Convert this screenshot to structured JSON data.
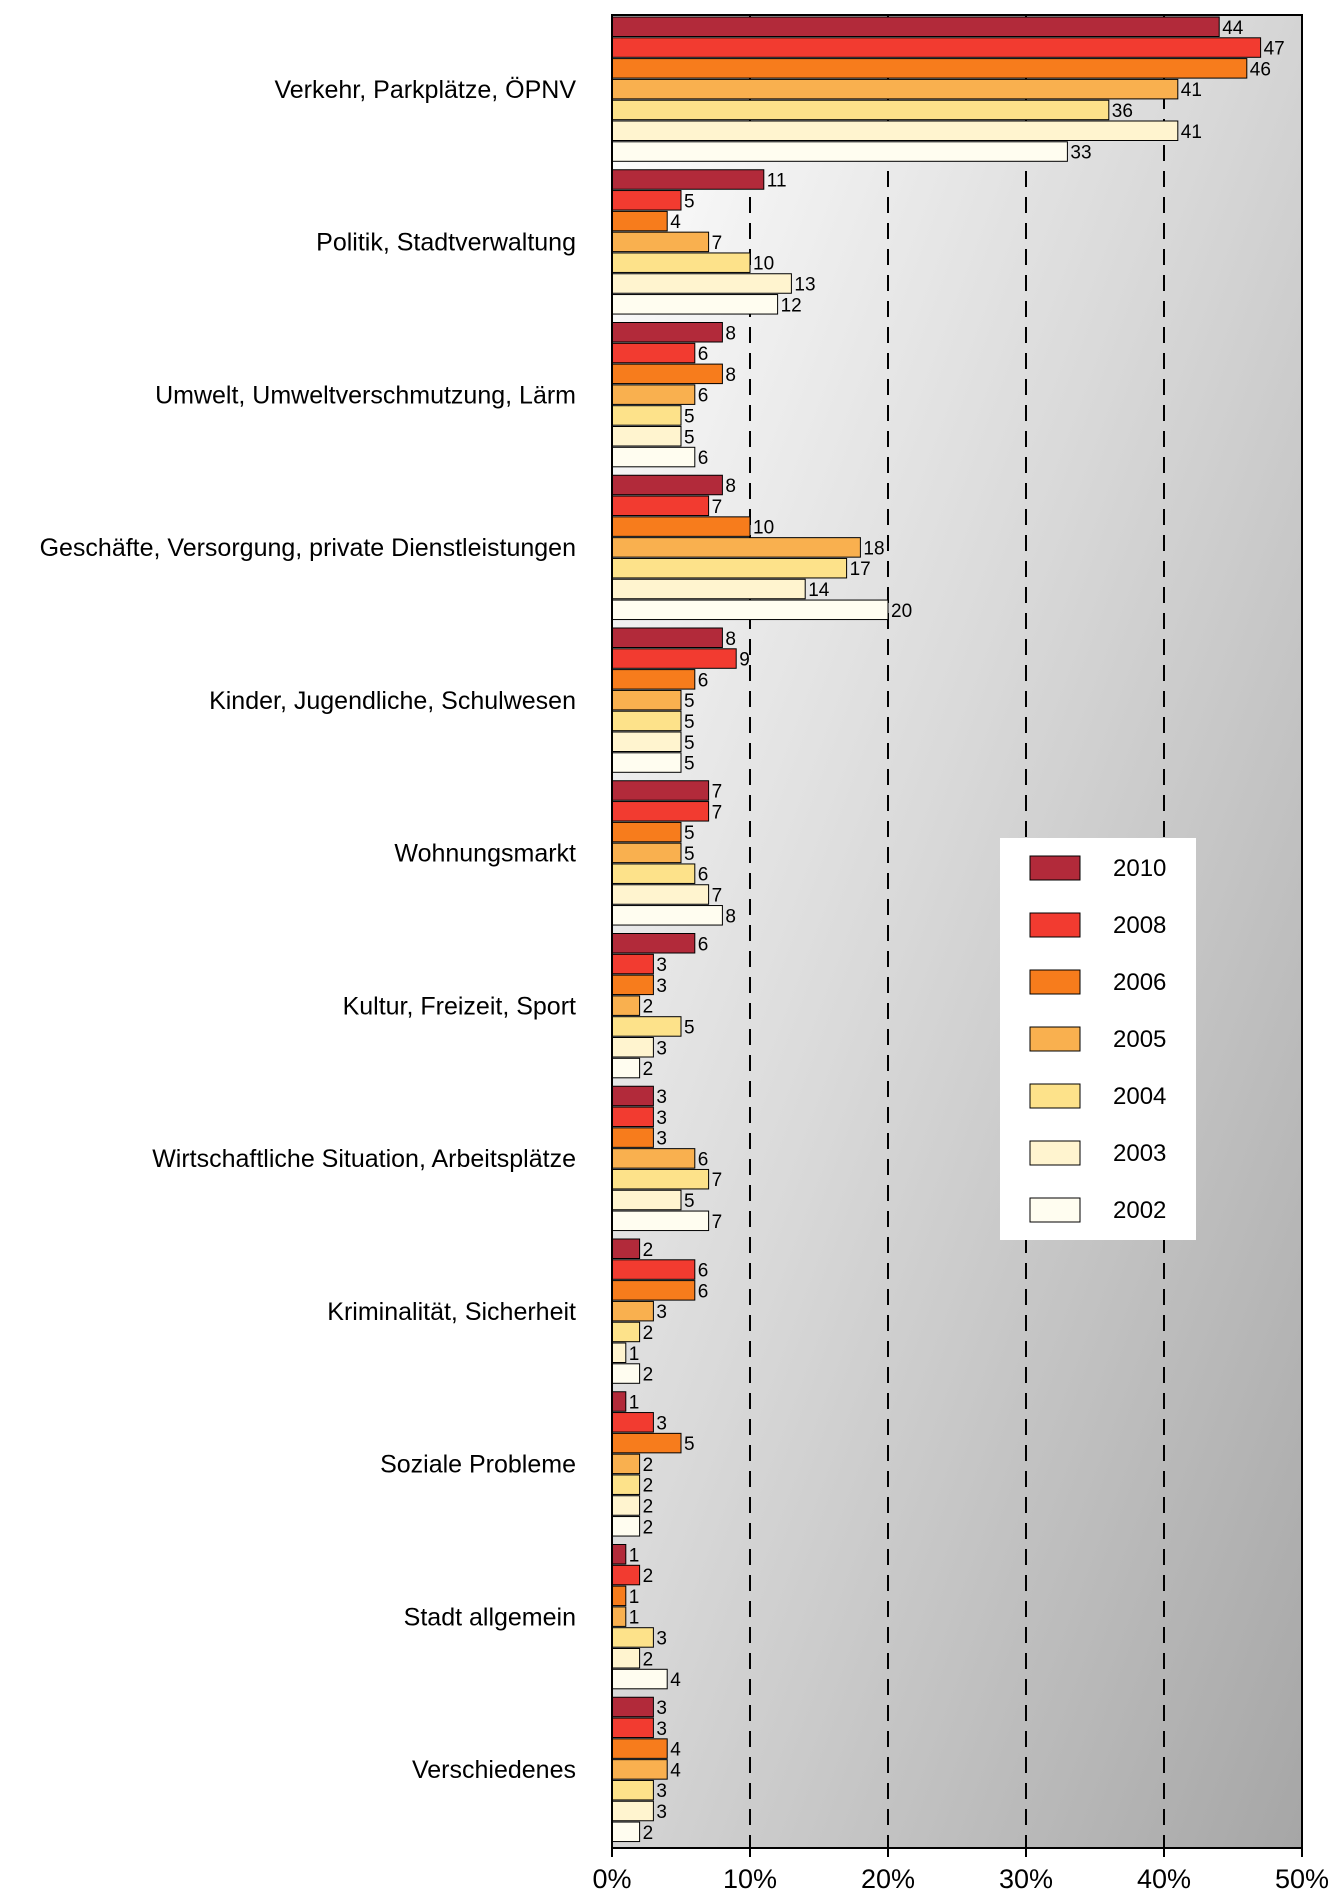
{
  "chart_data": {
    "type": "bar",
    "orientation": "horizontal",
    "title": "",
    "xlabel": "",
    "ylabel": "",
    "xlim": [
      0,
      50
    ],
    "x_tick_labels": [
      "0%",
      "10%",
      "20%",
      "30%",
      "40%",
      "50%"
    ],
    "grid": "vertical dashed lines at 10, 20, 30, 40",
    "legend_position": "right",
    "categories": [
      "Verkehr, Parkplätze, ÖPNV",
      "Politik, Stadtverwaltung",
      "Umwelt, Umweltverschmutzung, Lärm",
      "Geschäfte, Versorgung, private Dienstleistungen",
      "Kinder, Jugendliche, Schulwesen",
      "Wohnungsmarkt",
      "Kultur, Freizeit, Sport",
      "Wirtschaftliche Situation, Arbeitsplätze",
      "Kriminalität, Sicherheit",
      "Soziale Probleme",
      "Stadt allgemein",
      "Verschiedenes"
    ],
    "series": [
      {
        "name": "2010",
        "color": "#b22a3a",
        "values": [
          44,
          11,
          8,
          8,
          8,
          7,
          6,
          3,
          2,
          1,
          1,
          3
        ]
      },
      {
        "name": "2008",
        "color": "#f23b30",
        "values": [
          47,
          5,
          6,
          7,
          9,
          7,
          3,
          3,
          6,
          3,
          2,
          3
        ]
      },
      {
        "name": "2006",
        "color": "#f77c1c",
        "values": [
          46,
          4,
          8,
          10,
          6,
          5,
          3,
          3,
          6,
          5,
          1,
          4
        ]
      },
      {
        "name": "2005",
        "color": "#f9b04f",
        "values": [
          41,
          7,
          6,
          18,
          5,
          5,
          2,
          6,
          3,
          2,
          1,
          4
        ]
      },
      {
        "name": "2004",
        "color": "#fde28a",
        "values": [
          36,
          10,
          5,
          17,
          5,
          6,
          5,
          7,
          2,
          2,
          3,
          3
        ]
      },
      {
        "name": "2003",
        "color": "#fff4cf",
        "values": [
          41,
          13,
          5,
          14,
          5,
          7,
          3,
          5,
          1,
          2,
          2,
          3
        ]
      },
      {
        "name": "2002",
        "color": "#fffdf0",
        "values": [
          33,
          12,
          6,
          20,
          5,
          8,
          2,
          7,
          2,
          2,
          4,
          2
        ]
      }
    ]
  }
}
